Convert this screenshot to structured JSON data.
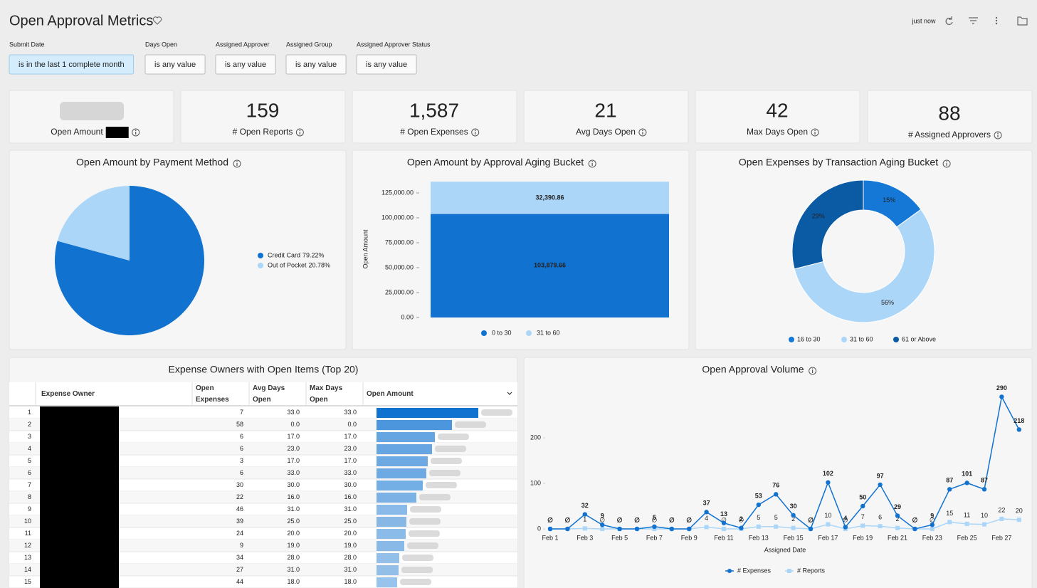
{
  "header": {
    "title": "Open Approval Metrics",
    "refresh_text": "just now"
  },
  "filters": [
    {
      "label": "Submit Date",
      "value": "is in the last 1 complete month"
    },
    {
      "label": "Days Open",
      "value": "is any value"
    },
    {
      "label": "Assigned Approver",
      "value": "is any value"
    },
    {
      "label": "Assigned Group",
      "value": "is any value"
    },
    {
      "label": "Assigned Approver Status",
      "value": "is any value"
    }
  ],
  "kpis": [
    {
      "label": "Open Amount"
    },
    {
      "value": 159,
      "label": "# Open Reports"
    },
    {
      "value": "1,587",
      "label": "# Open Expenses"
    },
    {
      "value": 21,
      "label": "Avg Days Open"
    },
    {
      "value": 42,
      "label": "Max Days Open"
    },
    {
      "value": 88,
      "label": "# Assigned Approvers"
    }
  ],
  "pie_chart": {
    "type": "pie",
    "title": "Open Amount by Payment Method",
    "categories": [
      "Credit Card",
      "Out of Pocket"
    ],
    "values": [
      79.22,
      20.78
    ],
    "value_labels": [
      "79.22%",
      "20.78%"
    ],
    "colors": [
      "#1172d0",
      "#acd6f8"
    ]
  },
  "aging_bar": {
    "type": "bar",
    "title": "Open Amount by Approval Aging Bucket",
    "y_label": "Open Amount",
    "categories": [
      null
    ],
    "series": [
      {
        "name": "0 to 30",
        "color": "#1172d0",
        "values": [
          103879.66
        ],
        "value_labels": [
          "103,879.66"
        ]
      },
      {
        "name": "31 to 60",
        "color": "#acd6f8",
        "values": [
          32390.86
        ],
        "value_labels": [
          "32,390.86"
        ]
      }
    ],
    "ylim": [
      0,
      137500
    ],
    "yticks": [
      {
        "value": 0,
        "label": "0.00"
      },
      {
        "value": 25000,
        "label": "25,000.00"
      },
      {
        "value": 50000,
        "label": "50,000.00"
      },
      {
        "value": 75000,
        "label": "75,000.00"
      },
      {
        "value": 100000,
        "label": "100,000.00"
      },
      {
        "value": 125000,
        "label": "125,000.00"
      }
    ]
  },
  "donut_chart": {
    "type": "donut",
    "title": "Open Expenses by Transaction Aging Bucket",
    "categories": [
      "16 to 30",
      "31 to 60",
      "61 or Above"
    ],
    "values": [
      15,
      56,
      29
    ],
    "value_labels": [
      "15%",
      "56%",
      "29%"
    ],
    "colors": [
      "#1578d6",
      "#acd6f8",
      "#0b5aa4"
    ]
  },
  "table": {
    "title": "Expense Owners with Open Items (Top 20)",
    "columns": [
      "Expense Owner",
      "Open Expenses",
      "Avg Days Open",
      "Max Days Open",
      "Open Amount"
    ],
    "rows": [
      [
        1,
        7,
        "33.0",
        "33.0"
      ],
      [
        2,
        58,
        "0.0",
        "0.0"
      ],
      [
        3,
        6,
        "17.0",
        "17.0"
      ],
      [
        4,
        6,
        "23.0",
        "23.0"
      ],
      [
        5,
        3,
        "17.0",
        "17.0"
      ],
      [
        6,
        6,
        "33.0",
        "33.0"
      ],
      [
        7,
        30,
        "30.0",
        "30.0"
      ],
      [
        8,
        22,
        "16.0",
        "16.0"
      ],
      [
        9,
        46,
        "31.0",
        "31.0"
      ],
      [
        10,
        39,
        "25.0",
        "25.0"
      ],
      [
        11,
        24,
        "20.0",
        "20.0"
      ],
      [
        12,
        9,
        "19.0",
        "19.0"
      ],
      [
        13,
        34,
        "28.0",
        "28.0"
      ],
      [
        14,
        27,
        "31.0",
        "31.0"
      ],
      [
        15,
        44,
        "18.0",
        "18.0"
      ]
    ],
    "open_amount": [
      14300,
      10600,
      8200,
      7800,
      7200,
      7000,
      6500,
      5600,
      4300,
      4200,
      4100,
      3900,
      3200,
      3100,
      2900
    ]
  },
  "line_chart": {
    "type": "line",
    "title": "Open Approval Volume",
    "x_label": "Assigned Date",
    "categories": [
      "Feb 1",
      null,
      "Feb 3",
      null,
      "Feb 5",
      null,
      "Feb 7",
      null,
      "Feb 9",
      null,
      "Feb 11",
      null,
      "Feb 13",
      null,
      "Feb 15",
      null,
      "Feb 17",
      null,
      "Feb 19",
      null,
      "Feb 21",
      null,
      "Feb 23",
      null,
      "Feb 25",
      null,
      "Feb 27",
      null
    ],
    "series": [
      {
        "name": "# Expenses",
        "color": "#1172d0",
        "values": [
          0,
          0,
          32,
          9,
          0,
          0,
          5,
          0,
          0,
          37,
          13,
          2,
          53,
          76,
          30,
          0,
          102,
          4,
          50,
          97,
          29,
          0,
          9,
          87,
          101,
          87,
          290,
          218
        ],
        "value_labels": [
          "∅",
          "∅",
          "32",
          "9",
          "∅",
          "∅",
          "5",
          "∅",
          "∅",
          "37",
          "13",
          "2",
          "53",
          "76",
          "30",
          "∅",
          "102",
          "4",
          "50",
          "97",
          "29",
          "∅",
          "9",
          "87",
          "101",
          "87",
          "290",
          "218"
        ]
      },
      {
        "name": "# Reports",
        "color": "#acd6f8",
        "values": [
          0,
          0,
          1,
          0,
          0,
          0,
          0,
          0,
          0,
          4,
          0,
          0,
          5,
          5,
          2,
          0,
          10,
          0,
          7,
          6,
          2,
          0,
          0,
          15,
          11,
          10,
          22,
          20
        ],
        "value_labels": [
          "∅",
          "∅",
          "1",
          "∅",
          "∅",
          "∅",
          "∅",
          "∅",
          "∅",
          "4",
          "∅",
          "∅",
          "5",
          "5",
          "2",
          "∅",
          "10",
          "∅",
          "7",
          "6",
          "2",
          "∅",
          "∅",
          "15",
          "11",
          "10",
          "22",
          "20"
        ]
      }
    ],
    "ylim": [
      0,
      300
    ],
    "yticks": [
      0,
      100,
      200
    ]
  }
}
